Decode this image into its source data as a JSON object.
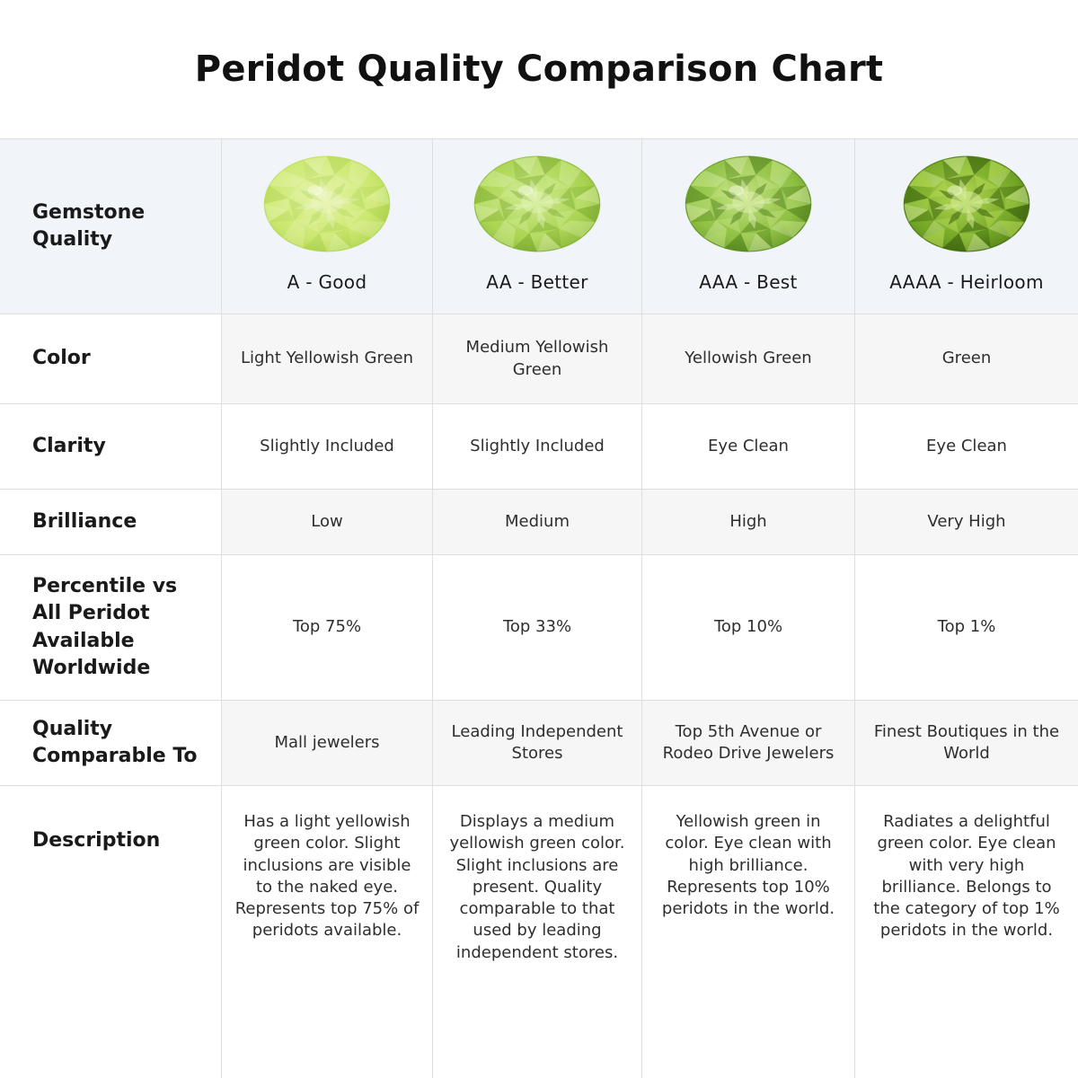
{
  "title": "Peridot Quality Comparison Chart",
  "colors": {
    "page_bg": "#ffffff",
    "header_bg": "#f1f5fa",
    "cell_bg": "#ffffff",
    "shaded_cell_bg": "#f6f6f6",
    "border": "#dedede",
    "title_text": "#111111",
    "label_text": "#1a1a1a",
    "value_text": "#2e2e2e"
  },
  "chart_data": {
    "type": "table",
    "title": "Peridot Quality Comparison Chart",
    "columns": [
      "A - Good",
      "AA - Better",
      "AAA - Best",
      "AAAA - Heirloom"
    ],
    "rows": [
      {
        "label": "Color",
        "values": [
          "Light Yellowish Green",
          "Medium Yellowish Green",
          "Yellowish Green",
          "Green"
        ]
      },
      {
        "label": "Clarity",
        "values": [
          "Slightly Included",
          "Slightly Included",
          "Eye Clean",
          "Eye Clean"
        ]
      },
      {
        "label": "Brilliance",
        "values": [
          "Low",
          "Medium",
          "High",
          "Very High"
        ]
      },
      {
        "label": "Percentile vs All Peridot Available Worldwide",
        "values": [
          "Top 75%",
          "Top 33%",
          "Top 10%",
          "Top 1%"
        ]
      },
      {
        "label": "Quality Comparable To",
        "values": [
          "Mall jewelers",
          "Leading Independent Stores",
          "Top 5th Avenue or Rodeo Drive Jewelers",
          "Finest Boutiques in the World"
        ]
      },
      {
        "label": "Description",
        "values": [
          "Has a light yellowish green color. Slight inclusions are visible to the naked eye. Represents top 75% of peridots available.",
          "Displays a medium yellowish green color. Slight inclusions are present. Quality comparable to that used by leading independent stores.",
          "Yellowish green in color. Eye clean with high brilliance. Represents top 10% peridots in the world.",
          "Radiates a delightful green color. Eye clean with very high brilliance. Belongs to the category of top 1% peridots in the world."
        ]
      }
    ]
  },
  "header": {
    "row_label": "Gemstone Quality",
    "grades": [
      {
        "label": "A - Good",
        "gem": {
          "base": "#cce86f",
          "light": "#e6f4ae",
          "dark": "#a3cc45",
          "highlight": "#f4fadd",
          "contrast": 0.55
        }
      },
      {
        "label": "AA - Better",
        "gem": {
          "base": "#abd452",
          "light": "#d2ec95",
          "dark": "#76a52c",
          "highlight": "#ecf7c9",
          "contrast": 0.75
        }
      },
      {
        "label": "AAA - Best",
        "gem": {
          "base": "#8fc043",
          "light": "#c4e382",
          "dark": "#4d7d1a",
          "highlight": "#e3f2b8",
          "contrast": 0.9
        }
      },
      {
        "label": "AAAA - Heirloom",
        "gem": {
          "base": "#76a928",
          "light": "#b4d854",
          "dark": "#375f0c",
          "highlight": "#d8ec9e",
          "contrast": 1.0
        }
      }
    ]
  },
  "rows": [
    {
      "label": "Color",
      "shaded": true,
      "values": [
        "Light Yellowish Green",
        "Medium Yellowish Green",
        "Yellowish Green",
        "Green"
      ]
    },
    {
      "label": "Clarity",
      "shaded": false,
      "values": [
        "Slightly Included",
        "Slightly Included",
        "Eye Clean",
        "Eye Clean"
      ]
    },
    {
      "label": "Brilliance",
      "shaded": true,
      "values": [
        "Low",
        "Medium",
        "High",
        "Very High"
      ]
    },
    {
      "label": "Percentile vs All Peridot Available Worldwide",
      "shaded": false,
      "values": [
        "Top 75%",
        "Top 33%",
        "Top 10%",
        "Top 1%"
      ]
    },
    {
      "label": "Quality Comparable To",
      "shaded": true,
      "values": [
        "Mall jewelers",
        "Leading Independent Stores",
        "Top 5th Avenue or Rodeo Drive Jewelers",
        "Finest Boutiques in the World"
      ]
    },
    {
      "label": "Description",
      "shaded": false,
      "values": [
        "Has a light yellowish green color. Slight inclusions are visible to the naked eye. Represents top 75% of peridots available.",
        "Displays a medium yellowish green color. Slight inclusions are present. Quality comparable to that used by leading independent stores.",
        "Yellowish green in color. Eye clean with high brilliance. Represents top 10% peridots in the world.",
        "Radiates a delightful green color. Eye clean with very high brilliance. Belongs to the category of top 1% peridots in the world."
      ]
    }
  ]
}
